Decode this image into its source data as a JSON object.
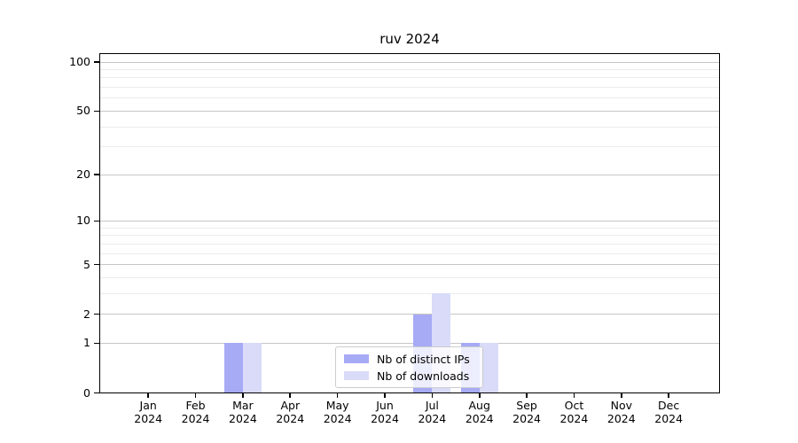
{
  "title": "ruv 2024",
  "colors": {
    "distinct_ips_bar": "#a7aaf5",
    "downloads_bar": "#d9dbf9",
    "major_gridline": "#c6c6c6",
    "minor_gridline": "#ececec",
    "axis": "#000000",
    "legend_border": "#cccccc",
    "background": "#ffffff"
  },
  "chart_data": {
    "type": "bar",
    "title": "ruv 2024",
    "categories": [
      "Jan 2024",
      "Feb 2024",
      "Mar 2024",
      "Apr 2024",
      "May 2024",
      "Jun 2024",
      "Jul 2024",
      "Aug 2024",
      "Sep 2024",
      "Oct 2024",
      "Nov 2024",
      "Dec 2024"
    ],
    "x_tick_months": [
      "Jan",
      "Feb",
      "Mar",
      "Apr",
      "May",
      "Jun",
      "Jul",
      "Aug",
      "Sep",
      "Oct",
      "Nov",
      "Dec"
    ],
    "x_tick_year": "2024",
    "series": [
      {
        "name": "Nb of distinct IPs",
        "color": "#a7aaf5",
        "values": [
          0,
          0,
          1,
          0,
          0,
          0,
          2,
          1,
          0,
          0,
          0,
          0
        ]
      },
      {
        "name": "Nb of downloads",
        "color": "#d9dbf9",
        "values": [
          0,
          0,
          1,
          0,
          0,
          0,
          3,
          1,
          0,
          0,
          0,
          0
        ]
      }
    ],
    "yscale": "log1p",
    "ylim": [
      0,
      112
    ],
    "y_major_ticks": [
      0,
      1,
      2,
      5,
      10,
      20,
      50,
      100
    ],
    "y_minor_ticks": [
      3,
      4,
      6,
      7,
      8,
      9,
      30,
      40,
      60,
      70,
      80,
      90
    ],
    "grid": true,
    "legend_position": "inside-bottom-center"
  }
}
